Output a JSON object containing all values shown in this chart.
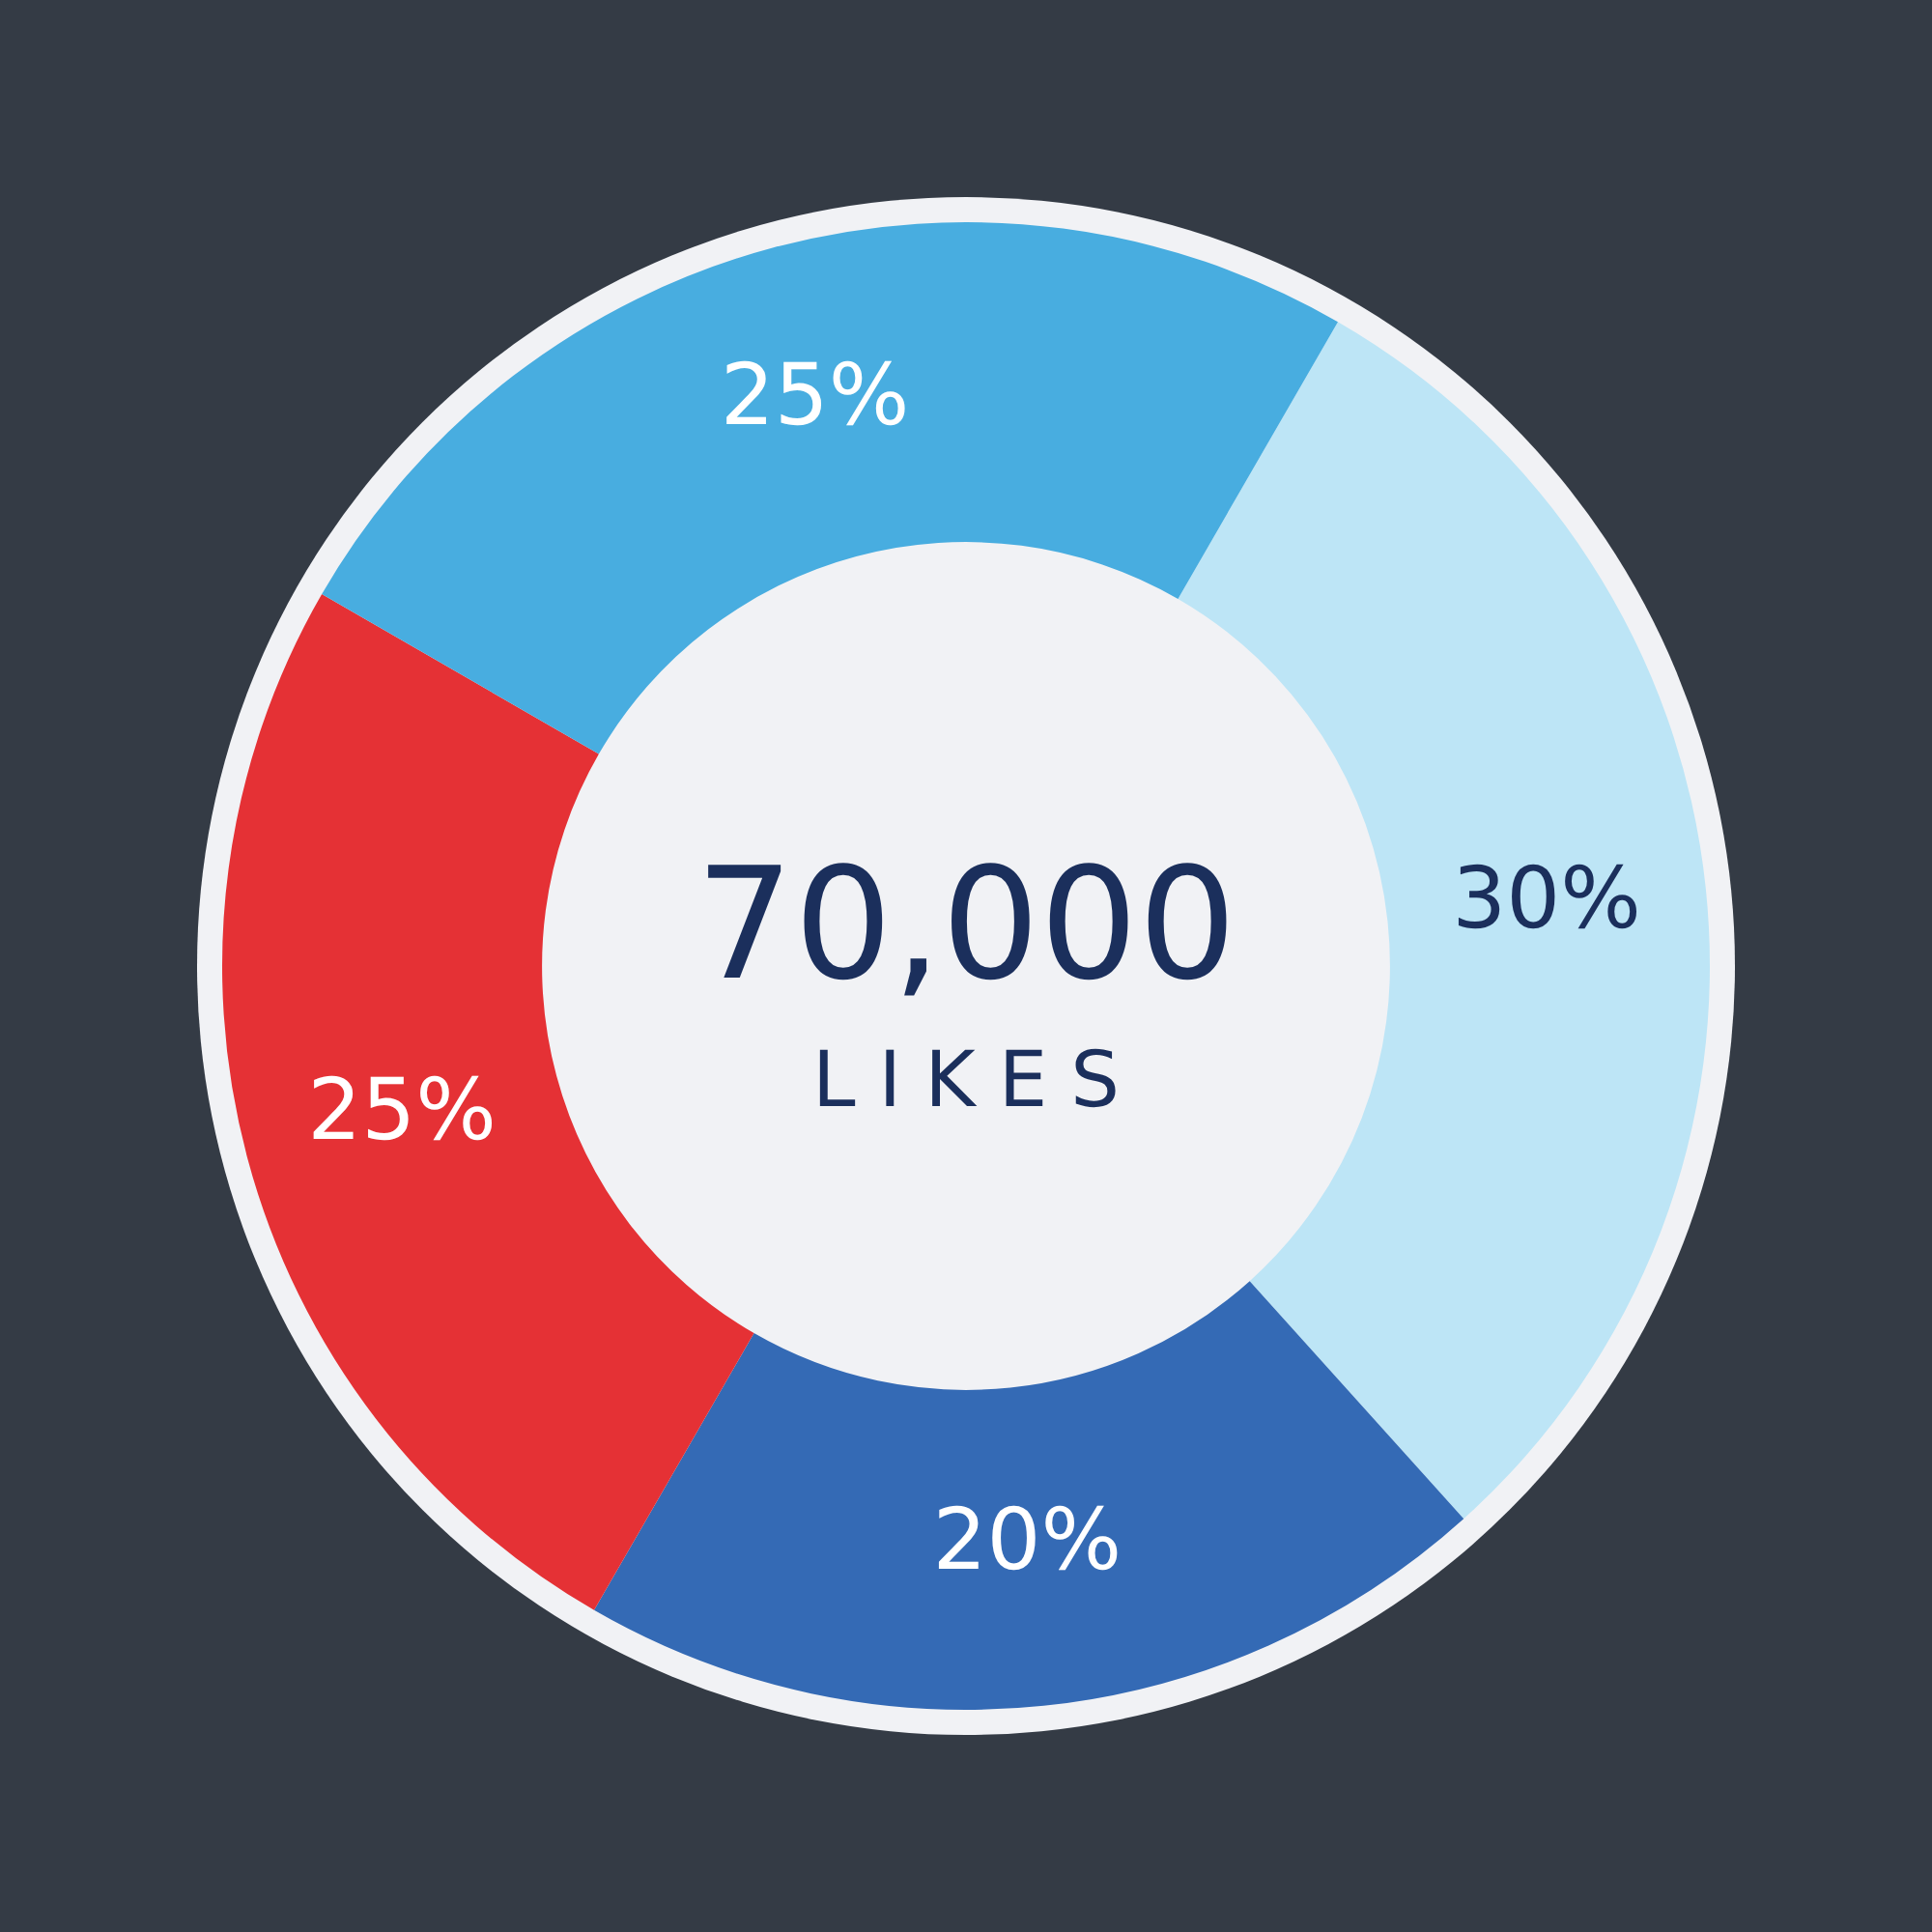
{
  "chart_data": {
    "type": "donut",
    "categories": [
      null,
      null,
      null,
      null
    ],
    "values": [
      30,
      20,
      25,
      25
    ],
    "colors": [
      "#bde5f6",
      "#346ab5",
      "#e53135",
      "#48ade0"
    ],
    "value_labels": [
      "30%",
      "20%",
      "25%",
      "25%"
    ],
    "annotations": [
      "70,000",
      "LIKES"
    ],
    "legend": false
  }
}
